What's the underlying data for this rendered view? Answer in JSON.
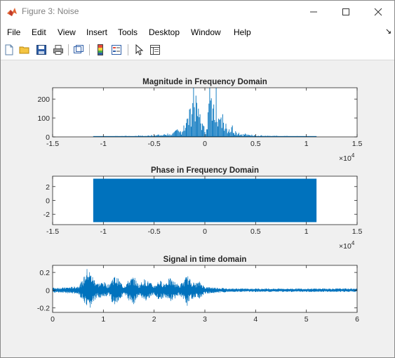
{
  "window": {
    "title": "Figure 3: Noise",
    "minimize_glyph": "—",
    "maximize_glyph": "☐",
    "close_glyph": "✕"
  },
  "menu": {
    "items": [
      "File",
      "Edit",
      "View",
      "Insert",
      "Tools",
      "Desktop",
      "Window",
      "Help"
    ],
    "overflow_glyph": "↘"
  },
  "toolbar": {
    "buttons": [
      "new-figure-icon",
      "open-file-icon",
      "save-icon",
      "print-icon",
      "link-plot-icon",
      "colorbar-icon",
      "legend-icon",
      "pointer-icon",
      "property-editor-icon"
    ]
  },
  "colors": {
    "series": "#0072bd",
    "axes_bg": "#ffffff",
    "figure_bg": "#f0f0f0"
  },
  "chart_data": [
    {
      "type": "line",
      "title": "Magnitude in Frequency Domain",
      "xlabel": "",
      "ylabel": "",
      "xlim": [
        -1.5,
        1.5
      ],
      "ylim": [
        0,
        260
      ],
      "x_exponent": "×10^4",
      "xticks": [
        "-1.5",
        "-1",
        "-0.5",
        "0",
        "0.5",
        "1",
        "1.5"
      ],
      "yticks": [
        "0",
        "100",
        "200"
      ],
      "series": [
        {
          "x_range": [
            -1.1,
            1.1
          ],
          "values": [
            2,
            3,
            2,
            4,
            3,
            2,
            3,
            5,
            3,
            4,
            6,
            4,
            3,
            5,
            8,
            6,
            5,
            7,
            10,
            8,
            12,
            9,
            14,
            18,
            12,
            25,
            40,
            30,
            60,
            95,
            150,
            260,
            180,
            120,
            60,
            40,
            260,
            150,
            260,
            90,
            120,
            70,
            40,
            60,
            30,
            22,
            14,
            18,
            10,
            12,
            8,
            6,
            9,
            5,
            7,
            4,
            6,
            5,
            3,
            4,
            5,
            3,
            2,
            4,
            3,
            2,
            3,
            2,
            3,
            2
          ]
        }
      ],
      "grid": false
    },
    {
      "type": "area",
      "title": "Phase in Frequency Domain",
      "xlabel": "",
      "ylabel": "",
      "xlim": [
        -1.5,
        1.5
      ],
      "ylim": [
        -3.5,
        3.5
      ],
      "x_exponent": "×10^4",
      "xticks": [
        "-1.5",
        "-1",
        "-0.5",
        "0",
        "0.5",
        "1",
        "1.5"
      ],
      "yticks": [
        "-2",
        "0",
        "2"
      ],
      "series": [
        {
          "x_range": [
            -1.1,
            1.1
          ],
          "y_range": [
            -3.14,
            3.14
          ]
        }
      ],
      "grid": false
    },
    {
      "type": "line",
      "title": "Signal in time domain",
      "xlabel": "",
      "ylabel": "",
      "xlim": [
        0,
        6
      ],
      "ylim": [
        -0.25,
        0.28
      ],
      "xticks": [
        "0",
        "1",
        "2",
        "3",
        "4",
        "5",
        "6"
      ],
      "yticks": [
        "-0.2",
        "0",
        "0.2"
      ],
      "series": [
        {
          "x": [
            0,
            0.2,
            0.4,
            0.5,
            0.6,
            0.65,
            0.7,
            0.75,
            0.8,
            0.9,
            1.0,
            1.1,
            1.2,
            1.3,
            1.4,
            1.5,
            1.6,
            1.7,
            1.8,
            1.9,
            2.0,
            2.1,
            2.2,
            2.3,
            2.4,
            2.5,
            2.6,
            2.65,
            2.7,
            2.8,
            2.9,
            3.0,
            3.5,
            4.0,
            4.5,
            5.0,
            5.5,
            6.0
          ],
          "amp": [
            0.03,
            0.03,
            0.04,
            0.05,
            0.12,
            0.22,
            0.27,
            0.2,
            0.15,
            0.08,
            0.1,
            0.06,
            0.17,
            0.13,
            0.05,
            0.12,
            0.16,
            0.06,
            0.13,
            0.1,
            0.05,
            0.12,
            0.08,
            0.14,
            0.1,
            0.06,
            0.12,
            0.18,
            0.13,
            0.08,
            0.1,
            0.04,
            0.02,
            0.02,
            0.02,
            0.02,
            0.02,
            0.02
          ]
        }
      ],
      "grid": false
    }
  ]
}
